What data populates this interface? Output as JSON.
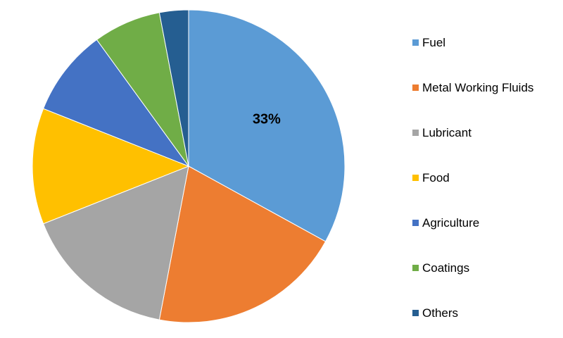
{
  "chart_data": {
    "type": "pie",
    "categories": [
      "Fuel",
      "Metal Working Fluids",
      "Lubricant",
      "Food",
      "Agriculture",
      "Coatings",
      "Others"
    ],
    "values": [
      33,
      20,
      16,
      12,
      9,
      7,
      3
    ],
    "colors": [
      "#5b9bd5",
      "#ed7d31",
      "#a5a5a5",
      "#ffc000",
      "#4472c4",
      "#70ad47",
      "#255e91"
    ],
    "data_labels": [
      {
        "category": "Fuel",
        "text": "33%"
      }
    ],
    "title": "",
    "legend_position": "right",
    "start_angle": "top",
    "direction": "clockwise"
  }
}
